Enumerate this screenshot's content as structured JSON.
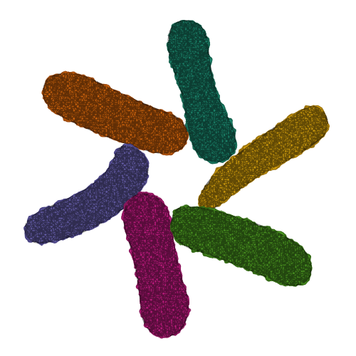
{
  "image": {
    "background": "#ffffff",
    "subject": "six-subunit-protein-assembly-surface-rendering",
    "subunits": [
      {
        "name": "teal-subunit",
        "color": "#1f8a6f",
        "shade": "#156350"
      },
      {
        "name": "orange-subunit",
        "color": "#d8680e",
        "shade": "#9e4a08"
      },
      {
        "name": "gold-subunit",
        "color": "#d8a30c",
        "shade": "#9a7207"
      },
      {
        "name": "purple-subunit",
        "color": "#6a62b0",
        "shade": "#4a4383"
      },
      {
        "name": "magenta-subunit",
        "color": "#c51f84",
        "shade": "#8c145c"
      },
      {
        "name": "green-subunit",
        "color": "#4e9a22",
        "shade": "#366c16"
      }
    ]
  }
}
